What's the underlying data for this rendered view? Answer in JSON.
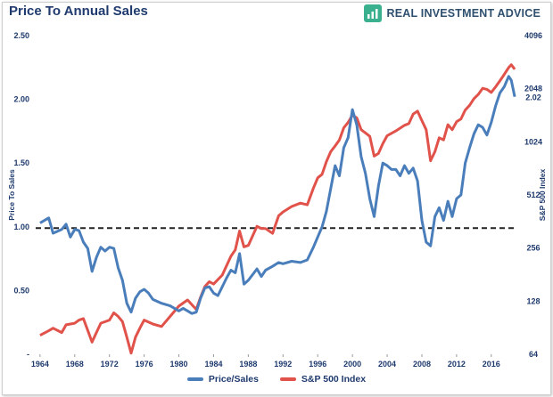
{
  "header": {
    "title": "Price To Annual Sales",
    "brand": "REAL INVESTMENT ADVICE",
    "brand_icon": "bar-chart-up-icon"
  },
  "colors": {
    "price_sales": "#4a7ebb",
    "sp500": "#e0524a",
    "title": "#1f3b6e",
    "brand_icon_bg": "#3bb08f"
  },
  "chart_data": {
    "type": "line",
    "title": "Price To Annual Sales",
    "xlabel": "",
    "ylabel": "Price To Sales",
    "y2label": "S&P 500 Index",
    "x_ticks": [
      "1964",
      "1968",
      "1972",
      "1976",
      "1980",
      "1984",
      "1988",
      "1992",
      "1996",
      "2000",
      "2004",
      "2008",
      "2012",
      "2016"
    ],
    "y_ticks": [
      "-",
      "0.50",
      "1.00",
      "1.50",
      "2.00",
      "2.50"
    ],
    "y2_ticks": [
      "64",
      "128",
      "256",
      "512",
      "1024",
      "2048",
      "4096"
    ],
    "ylim": [
      0,
      2.5
    ],
    "y2lim": [
      64,
      4096
    ],
    "y2_scale": "log2",
    "xlim": [
      1963.5,
      2019.0
    ],
    "reference_line": {
      "y": 0.99,
      "style": "dashed"
    },
    "end_label": "2.02",
    "grid": false,
    "legend_position": "bottom",
    "series": [
      {
        "name": "Price/Sales",
        "axis": "left",
        "x": [
          1964.0,
          1965.0,
          1965.5,
          1966.5,
          1967.0,
          1967.5,
          1968.0,
          1968.5,
          1969.0,
          1969.5,
          1970.0,
          1970.5,
          1971.0,
          1971.5,
          1972.0,
          1972.5,
          1973.0,
          1973.5,
          1974.0,
          1974.5,
          1975.0,
          1975.5,
          1976.0,
          1976.5,
          1977.0,
          1978.0,
          1979.0,
          1980.0,
          1980.5,
          1981.0,
          1981.5,
          1982.0,
          1982.5,
          1983.0,
          1983.5,
          1984.0,
          1984.5,
          1985.0,
          1985.5,
          1986.0,
          1986.5,
          1987.0,
          1987.5,
          1988.0,
          1989.0,
          1989.5,
          1990.0,
          1990.8,
          1991.5,
          1992.0,
          1993.0,
          1994.0,
          1994.8,
          1995.5,
          1996.0,
          1996.5,
          1997.0,
          1997.5,
          1998.0,
          1998.5,
          1999.0,
          1999.5,
          2000.0,
          2000.5,
          2001.0,
          2001.5,
          2002.0,
          2002.5,
          2003.0,
          2003.5,
          2004.0,
          2004.5,
          2005.0,
          2005.5,
          2006.0,
          2006.5,
          2007.0,
          2007.5,
          2008.0,
          2008.5,
          2009.0,
          2009.5,
          2010.0,
          2010.5,
          2011.0,
          2011.5,
          2012.0,
          2012.5,
          2013.0,
          2013.5,
          2014.0,
          2014.5,
          2015.0,
          2015.5,
          2016.0,
          2016.5,
          2017.0,
          2017.5,
          2018.0,
          2018.3,
          2018.7
        ],
        "values": [
          1.03,
          1.07,
          0.95,
          0.98,
          1.02,
          0.92,
          0.98,
          0.97,
          0.88,
          0.83,
          0.65,
          0.76,
          0.84,
          0.81,
          0.84,
          0.83,
          0.68,
          0.58,
          0.4,
          0.33,
          0.44,
          0.49,
          0.51,
          0.48,
          0.43,
          0.4,
          0.38,
          0.34,
          0.36,
          0.34,
          0.32,
          0.33,
          0.44,
          0.52,
          0.53,
          0.48,
          0.46,
          0.53,
          0.6,
          0.66,
          0.64,
          0.79,
          0.55,
          0.58,
          0.67,
          0.61,
          0.66,
          0.69,
          0.72,
          0.71,
          0.73,
          0.72,
          0.74,
          0.84,
          0.92,
          1.0,
          1.12,
          1.3,
          1.48,
          1.4,
          1.62,
          1.7,
          1.92,
          1.8,
          1.55,
          1.42,
          1.22,
          1.08,
          1.32,
          1.5,
          1.48,
          1.45,
          1.45,
          1.4,
          1.48,
          1.42,
          1.46,
          1.36,
          1.05,
          0.88,
          0.85,
          1.08,
          1.15,
          1.05,
          1.2,
          1.08,
          1.22,
          1.25,
          1.5,
          1.62,
          1.73,
          1.8,
          1.78,
          1.72,
          1.82,
          1.95,
          2.05,
          2.1,
          2.18,
          2.15,
          2.02
        ]
      },
      {
        "name": "S&P 500 Index",
        "axis": "right",
        "x": [
          1964.0,
          1965.0,
          1965.5,
          1966.5,
          1967.0,
          1968.0,
          1968.5,
          1969.0,
          1970.0,
          1970.5,
          1971.0,
          1972.0,
          1972.5,
          1973.0,
          1973.5,
          1974.0,
          1974.5,
          1975.0,
          1975.5,
          1976.0,
          1977.0,
          1978.0,
          1979.0,
          1980.0,
          1980.5,
          1981.0,
          1982.0,
          1982.5,
          1983.0,
          1983.5,
          1984.0,
          1985.0,
          1986.0,
          1986.5,
          1987.0,
          1987.5,
          1988.0,
          1989.0,
          1989.5,
          1990.0,
          1990.8,
          1991.5,
          1992.0,
          1993.0,
          1994.0,
          1994.8,
          1995.5,
          1996.0,
          1996.5,
          1997.0,
          1997.5,
          1998.0,
          1998.5,
          1999.0,
          1999.5,
          2000.0,
          2000.5,
          2001.0,
          2001.5,
          2002.0,
          2002.5,
          2003.0,
          2003.5,
          2004.0,
          2005.0,
          2006.0,
          2006.5,
          2007.0,
          2007.5,
          2008.0,
          2008.5,
          2009.0,
          2009.5,
          2010.0,
          2010.5,
          2011.0,
          2011.5,
          2012.0,
          2012.5,
          2013.0,
          2013.5,
          2014.0,
          2014.5,
          2015.0,
          2015.5,
          2016.0,
          2016.5,
          2017.0,
          2017.5,
          2018.0,
          2018.3,
          2018.7
        ],
        "values": [
          82,
          87,
          90,
          85,
          94,
          96,
          100,
          102,
          75,
          85,
          96,
          100,
          110,
          105,
          98,
          80,
          65,
          80,
          90,
          100,
          95,
          92,
          105,
          120,
          125,
          130,
          115,
          135,
          155,
          165,
          160,
          180,
          230,
          250,
          320,
          260,
          265,
          340,
          330,
          330,
          310,
          390,
          410,
          440,
          460,
          450,
          560,
          640,
          670,
          790,
          900,
          970,
          1050,
          1230,
          1320,
          1450,
          1400,
          1200,
          1150,
          1100,
          850,
          880,
          1000,
          1110,
          1180,
          1270,
          1300,
          1470,
          1530,
          1350,
          1200,
          800,
          900,
          1080,
          1050,
          1280,
          1200,
          1330,
          1380,
          1550,
          1650,
          1800,
          1900,
          2060,
          2030,
          1950,
          2100,
          2270,
          2470,
          2700,
          2800,
          2640
        ]
      }
    ]
  },
  "legend": {
    "items": [
      {
        "label": "Price/Sales"
      },
      {
        "label": "S&P 500 Index"
      }
    ]
  }
}
